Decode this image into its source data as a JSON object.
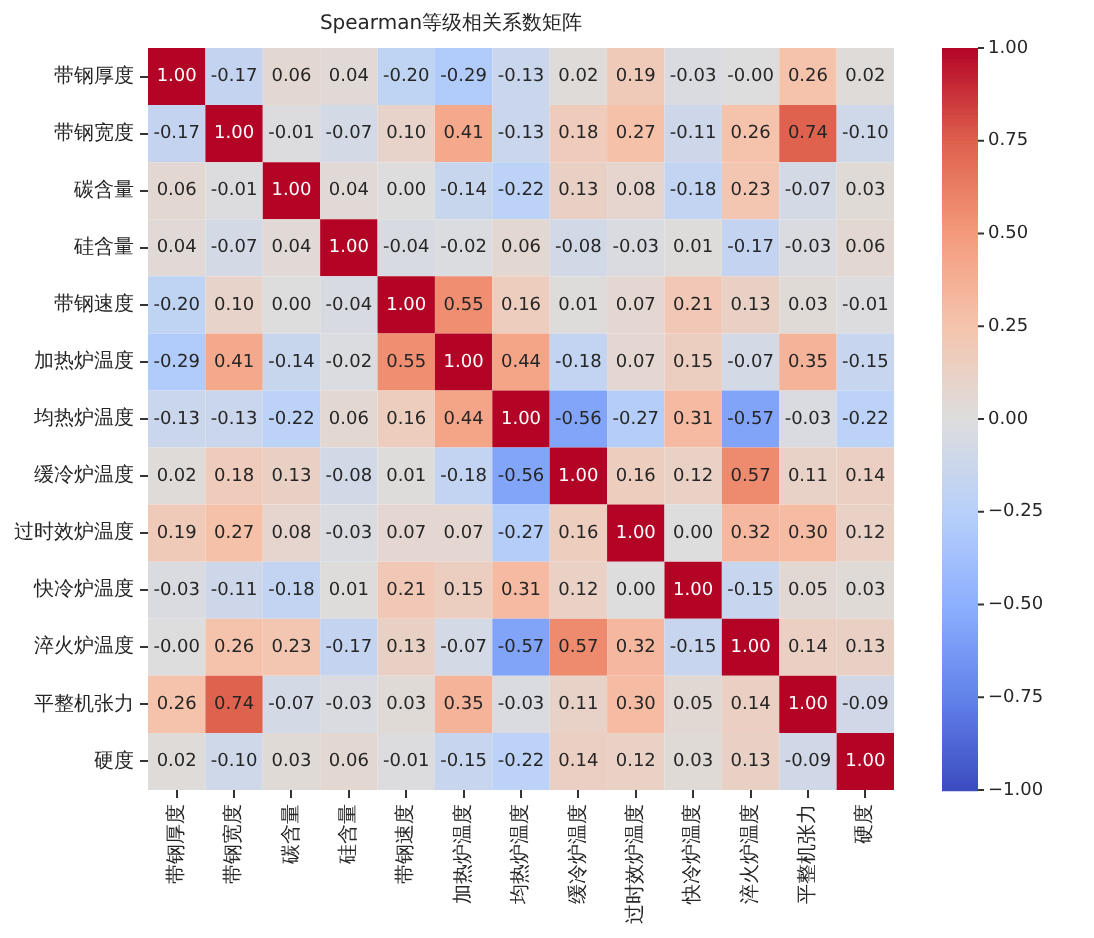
{
  "chart_data": {
    "type": "heatmap",
    "title": "Spearman等级相关系数矩阵",
    "categories": [
      "带钢厚度",
      "带钢宽度",
      "碳含量",
      "硅含量",
      "带钢速度",
      "加热炉温度",
      "均热炉温度",
      "缓冷炉温度",
      "过时效炉温度",
      "快冷炉温度",
      "淬火炉温度",
      "平整机张力",
      "硬度"
    ],
    "y_categories": [
      "带钢厚度",
      "带钢宽度",
      "碳含量",
      "硅含量",
      "带钢速度",
      "加热炉温度",
      "均热炉温度",
      "缓冷炉温度",
      "过时效炉温度",
      "快冷炉温度",
      "淬火炉温度",
      "平整机张力",
      "硬度"
    ],
    "cells": [
      [
        1.0,
        -0.17,
        0.06,
        0.04,
        -0.2,
        -0.29,
        -0.13,
        0.02,
        0.19,
        -0.03,
        0.0,
        0.26,
        0.02
      ],
      [
        -0.17,
        1.0,
        -0.01,
        -0.07,
        0.1,
        0.41,
        -0.13,
        0.18,
        0.27,
        -0.11,
        0.26,
        0.74,
        -0.1
      ],
      [
        0.06,
        -0.01,
        1.0,
        0.04,
        0.0,
        -0.14,
        -0.22,
        0.13,
        0.08,
        -0.18,
        0.23,
        -0.07,
        0.03
      ],
      [
        0.04,
        -0.07,
        0.04,
        1.0,
        -0.04,
        -0.02,
        0.06,
        -0.08,
        -0.03,
        0.01,
        -0.17,
        -0.03,
        0.06
      ],
      [
        -0.2,
        0.1,
        0.0,
        -0.04,
        1.0,
        0.55,
        0.16,
        0.01,
        0.07,
        0.21,
        0.13,
        0.03,
        -0.01
      ],
      [
        -0.29,
        0.41,
        -0.14,
        -0.02,
        0.55,
        1.0,
        0.44,
        -0.18,
        0.07,
        0.15,
        -0.07,
        0.35,
        -0.15
      ],
      [
        -0.13,
        -0.13,
        -0.22,
        0.06,
        0.16,
        0.44,
        1.0,
        -0.56,
        -0.27,
        0.31,
        -0.57,
        -0.03,
        -0.22
      ],
      [
        0.02,
        0.18,
        0.13,
        -0.08,
        0.01,
        -0.18,
        -0.56,
        1.0,
        0.16,
        0.12,
        0.57,
        0.11,
        0.14
      ],
      [
        0.19,
        0.27,
        0.08,
        -0.03,
        0.07,
        0.07,
        -0.27,
        0.16,
        1.0,
        0.0,
        0.32,
        0.3,
        0.12
      ],
      [
        -0.03,
        -0.11,
        -0.18,
        0.01,
        0.21,
        0.15,
        0.31,
        0.12,
        0.0,
        1.0,
        -0.15,
        0.05,
        0.03
      ],
      [
        0.0,
        0.26,
        0.23,
        -0.17,
        0.13,
        -0.07,
        -0.57,
        0.57,
        0.32,
        -0.15,
        1.0,
        0.14,
        0.13
      ],
      [
        0.26,
        0.74,
        -0.07,
        -0.03,
        0.03,
        0.35,
        -0.03,
        0.11,
        0.3,
        0.05,
        0.14,
        1.0,
        -0.09
      ],
      [
        0.02,
        -0.1,
        0.03,
        0.06,
        -0.01,
        -0.15,
        -0.22,
        0.14,
        0.12,
        0.03,
        0.13,
        -0.09,
        1.0
      ]
    ],
    "cell_labels": [
      [
        "1.00",
        "-0.17",
        "0.06",
        "0.04",
        "-0.20",
        "-0.29",
        "-0.13",
        "0.02",
        "0.19",
        "-0.03",
        "-0.00",
        "0.26",
        "0.02"
      ],
      [
        "-0.17",
        "1.00",
        "-0.01",
        "-0.07",
        "0.10",
        "0.41",
        "-0.13",
        "0.18",
        "0.27",
        "-0.11",
        "0.26",
        "0.74",
        "-0.10"
      ],
      [
        "0.06",
        "-0.01",
        "1.00",
        "0.04",
        "0.00",
        "-0.14",
        "-0.22",
        "0.13",
        "0.08",
        "-0.18",
        "0.23",
        "-0.07",
        "0.03"
      ],
      [
        "0.04",
        "-0.07",
        "0.04",
        "1.00",
        "-0.04",
        "-0.02",
        "0.06",
        "-0.08",
        "-0.03",
        "0.01",
        "-0.17",
        "-0.03",
        "0.06"
      ],
      [
        "-0.20",
        "0.10",
        "0.00",
        "-0.04",
        "1.00",
        "0.55",
        "0.16",
        "0.01",
        "0.07",
        "0.21",
        "0.13",
        "0.03",
        "-0.01"
      ],
      [
        "-0.29",
        "0.41",
        "-0.14",
        "-0.02",
        "0.55",
        "1.00",
        "0.44",
        "-0.18",
        "0.07",
        "0.15",
        "-0.07",
        "0.35",
        "-0.15"
      ],
      [
        "-0.13",
        "-0.13",
        "-0.22",
        "0.06",
        "0.16",
        "0.44",
        "1.00",
        "-0.56",
        "-0.27",
        "0.31",
        "-0.57",
        "-0.03",
        "-0.22"
      ],
      [
        "0.02",
        "0.18",
        "0.13",
        "-0.08",
        "0.01",
        "-0.18",
        "-0.56",
        "1.00",
        "0.16",
        "0.12",
        "0.57",
        "0.11",
        "0.14"
      ],
      [
        "0.19",
        "0.27",
        "0.08",
        "-0.03",
        "0.07",
        "0.07",
        "-0.27",
        "0.16",
        "1.00",
        "0.00",
        "0.32",
        "0.30",
        "0.12"
      ],
      [
        "-0.03",
        "-0.11",
        "-0.18",
        "0.01",
        "0.21",
        "0.15",
        "0.31",
        "0.12",
        "0.00",
        "1.00",
        "-0.15",
        "0.05",
        "0.03"
      ],
      [
        "-0.00",
        "0.26",
        "0.23",
        "-0.17",
        "0.13",
        "-0.07",
        "-0.57",
        "0.57",
        "0.32",
        "-0.15",
        "1.00",
        "0.14",
        "0.13"
      ],
      [
        "0.26",
        "0.74",
        "-0.07",
        "-0.03",
        "0.03",
        "0.35",
        "-0.03",
        "0.11",
        "0.30",
        "0.05",
        "0.14",
        "1.00",
        "-0.09"
      ],
      [
        "0.02",
        "-0.10",
        "0.03",
        "0.06",
        "-0.01",
        "-0.15",
        "-0.22",
        "0.14",
        "0.12",
        "0.03",
        "0.13",
        "-0.09",
        "1.00"
      ]
    ],
    "clim": [
      -1,
      1
    ],
    "cticks": [
      {
        "value": -1,
        "label": "−1.00"
      },
      {
        "value": -0.75,
        "label": "−0.75"
      },
      {
        "value": -0.5,
        "label": "−0.50"
      },
      {
        "value": -0.25,
        "label": "−0.25"
      },
      {
        "value": 0,
        "label": "0.00"
      },
      {
        "value": 0.25,
        "label": "0.25"
      },
      {
        "value": 0.5,
        "label": "0.50"
      },
      {
        "value": 0.75,
        "label": "0.75"
      },
      {
        "value": 1,
        "label": "1.00"
      }
    ]
  }
}
